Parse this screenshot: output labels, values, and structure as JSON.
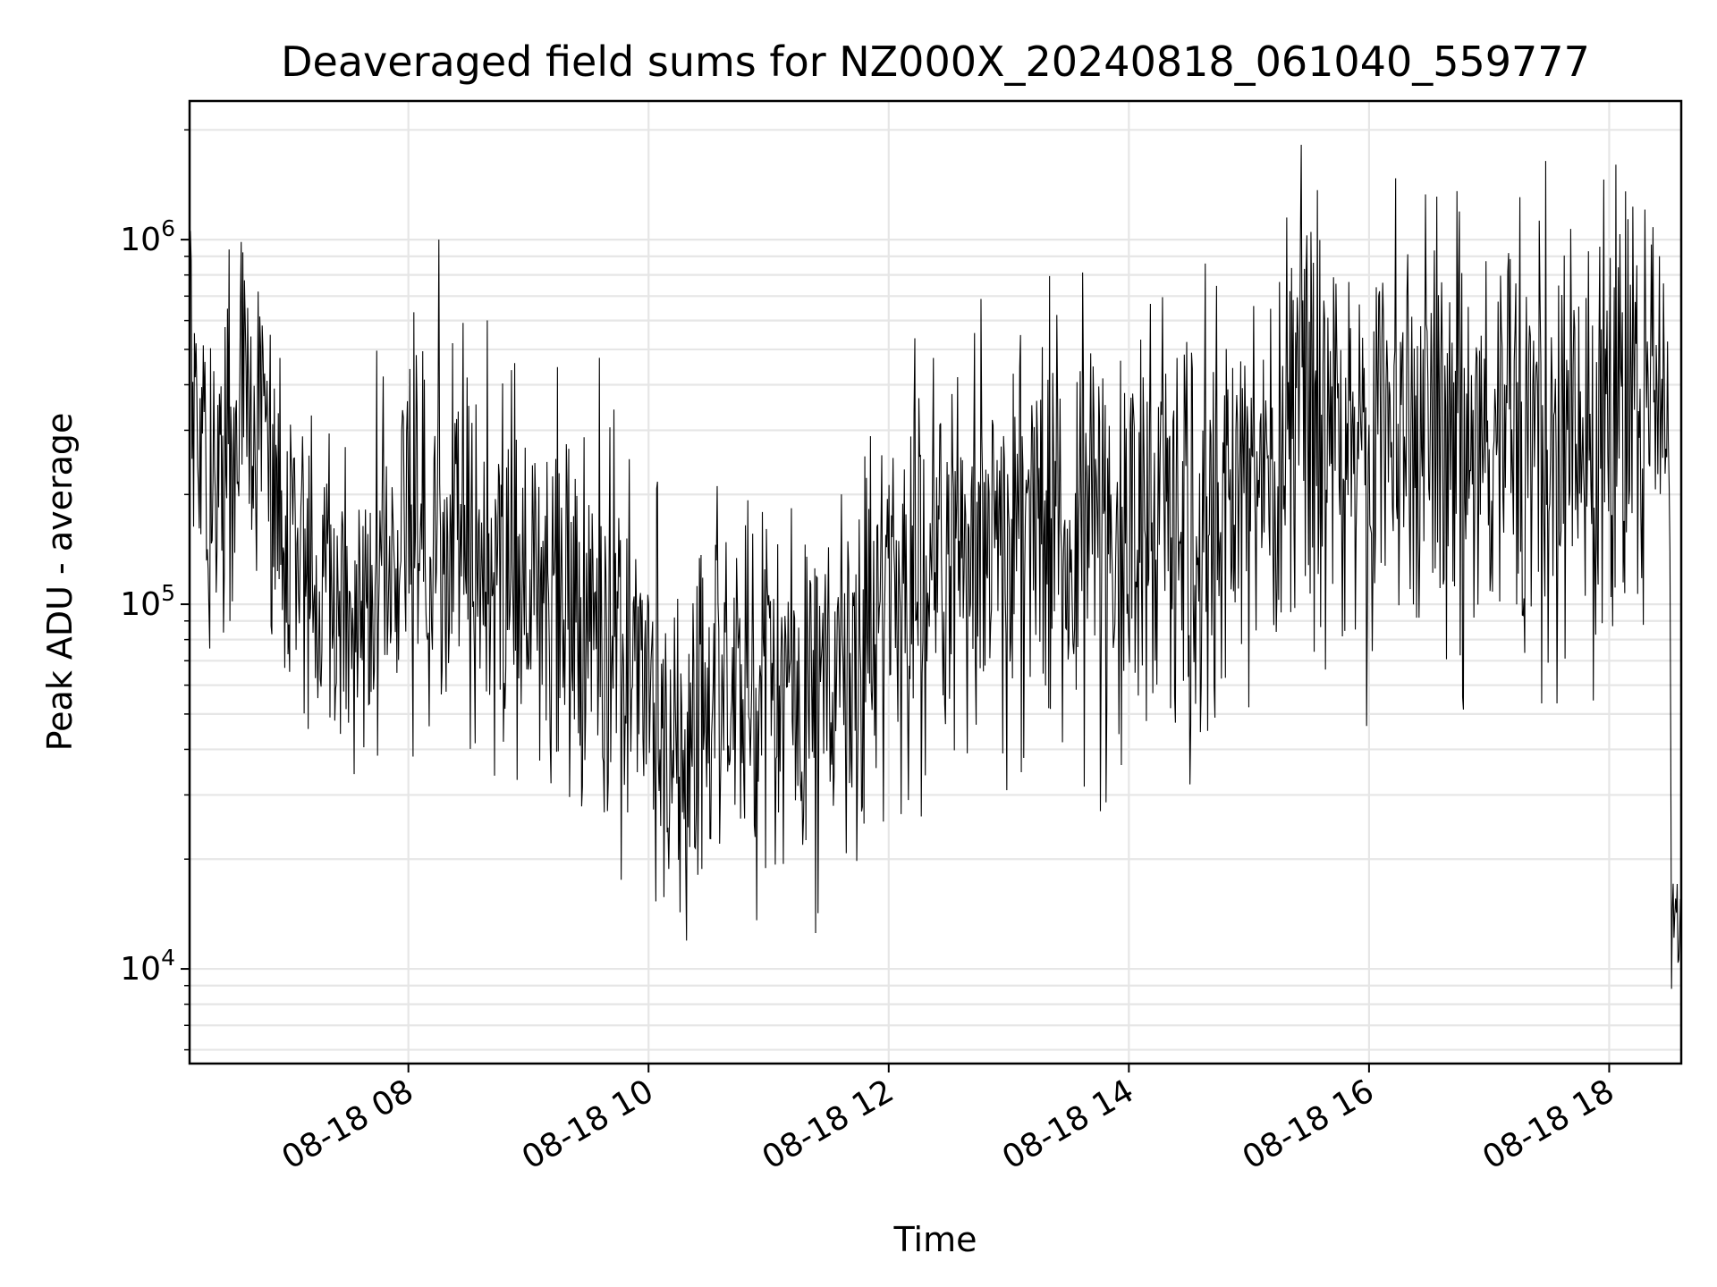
{
  "chart_data": {
    "type": "line",
    "title": "Deaveraged field sums for NZ000X_20240818_061040_559777",
    "xlabel": "Time",
    "ylabel": "Peak ADU - average",
    "yscale": "log",
    "grid": true,
    "line_color": "#000000",
    "grid_color": "#e6e6e6",
    "x_start": "2024-08-18 06:10:40",
    "x_end": "2024-08-18 18:36:00",
    "ylim": [
      5500,
      2400000
    ],
    "x_ticks": [
      {
        "t": "2024-08-18 08:00",
        "label": "08-18 08"
      },
      {
        "t": "2024-08-18 10:00",
        "label": "08-18 10"
      },
      {
        "t": "2024-08-18 12:00",
        "label": "08-18 12"
      },
      {
        "t": "2024-08-18 14:00",
        "label": "08-18 14"
      },
      {
        "t": "2024-08-18 16:00",
        "label": "08-18 16"
      },
      {
        "t": "2024-08-18 18:00",
        "label": "08-18 18"
      }
    ],
    "y_ticks": [
      {
        "value": 10000,
        "base": "10",
        "exp": "4"
      },
      {
        "value": 100000,
        "base": "10",
        "exp": "5"
      },
      {
        "value": 1000000,
        "base": "10",
        "exp": "6"
      }
    ],
    "series": [
      {
        "name": "",
        "sample_count": 1850,
        "seed": 559777,
        "trend": [
          {
            "t": "2024-08-18 06:10:40",
            "median": 420000,
            "high": 950000,
            "low": 120000
          },
          {
            "t": "2024-08-18 06:25",
            "median": 220000,
            "high": 700000,
            "low": 50000
          },
          {
            "t": "2024-08-18 06:40",
            "median": 350000,
            "high": 1150000,
            "low": 60000
          },
          {
            "t": "2024-08-18 07:00",
            "median": 130000,
            "high": 550000,
            "low": 40000
          },
          {
            "t": "2024-08-18 07:30",
            "median": 90000,
            "high": 300000,
            "low": 25000
          },
          {
            "t": "2024-08-18 08:00",
            "median": 160000,
            "high": 1050000,
            "low": 40000
          },
          {
            "t": "2024-08-18 09:00",
            "median": 110000,
            "high": 550000,
            "low": 22000
          },
          {
            "t": "2024-08-18 09:45",
            "median": 90000,
            "high": 400000,
            "low": 20000
          },
          {
            "t": "2024-08-18 10:15",
            "median": 45000,
            "high": 250000,
            "low": 9000
          },
          {
            "t": "2024-08-18 11:00",
            "median": 60000,
            "high": 240000,
            "low": 15000
          },
          {
            "t": "2024-08-18 11:30",
            "median": 55000,
            "high": 250000,
            "low": 12000
          },
          {
            "t": "2024-08-18 12:00",
            "median": 100000,
            "high": 430000,
            "low": 20000
          },
          {
            "t": "2024-08-18 13:00",
            "median": 160000,
            "high": 700000,
            "low": 35000
          },
          {
            "t": "2024-08-18 14:00",
            "median": 180000,
            "high": 900000,
            "low": 25000
          },
          {
            "t": "2024-08-18 15:00",
            "median": 180000,
            "high": 800000,
            "low": 40000
          },
          {
            "t": "2024-08-18 15:30",
            "median": 300000,
            "high": 1800000,
            "low": 60000
          },
          {
            "t": "2024-08-18 16:00",
            "median": 320000,
            "high": 1200000,
            "low": 50000
          },
          {
            "t": "2024-08-18 17:00",
            "median": 330000,
            "high": 1800000,
            "low": 60000
          },
          {
            "t": "2024-08-18 18:00",
            "median": 330000,
            "high": 1900000,
            "low": 60000
          },
          {
            "t": "2024-08-18 18:24",
            "median": 350000,
            "high": 1700000,
            "low": 80000
          },
          {
            "t": "2024-08-18 18:30",
            "median": 350000,
            "high": 600000,
            "low": 110000
          },
          {
            "t": "2024-08-18 18:31",
            "median": 15000,
            "high": 22000,
            "low": 8000
          },
          {
            "t": "2024-08-18 18:36:00",
            "median": 12000,
            "high": 28000,
            "low": 7000
          }
        ]
      }
    ]
  }
}
